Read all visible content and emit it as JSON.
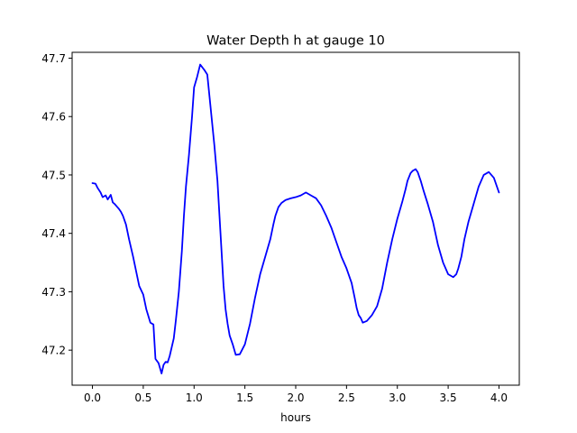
{
  "chart_data": {
    "type": "line",
    "title": "Water Depth h at gauge 10",
    "xlabel": "hours",
    "ylabel": "",
    "xlim": [
      -0.2,
      4.2
    ],
    "ylim": [
      47.14,
      47.71
    ],
    "xticks": [
      0.0,
      0.5,
      1.0,
      1.5,
      2.0,
      2.5,
      3.0,
      3.5,
      4.0
    ],
    "xtick_labels": [
      "0.0",
      "0.5",
      "1.0",
      "1.5",
      "2.0",
      "2.5",
      "3.0",
      "3.5",
      "4.0"
    ],
    "yticks": [
      47.2,
      47.3,
      47.4,
      47.5,
      47.6,
      47.7
    ],
    "ytick_labels": [
      "47.2",
      "47.3",
      "47.4",
      "47.5",
      "47.6",
      "47.7"
    ],
    "grid": false,
    "line_color": "#0000ff",
    "series": [
      {
        "x": [
          0.0,
          0.03,
          0.05,
          0.08,
          0.1,
          0.13,
          0.15,
          0.18,
          0.2,
          0.22,
          0.24,
          0.26,
          0.28,
          0.3,
          0.33,
          0.36,
          0.4,
          0.43,
          0.46,
          0.5,
          0.53,
          0.57,
          0.6,
          0.62,
          0.65,
          0.68,
          0.7,
          0.72,
          0.74,
          0.76,
          0.78,
          0.8,
          0.82,
          0.85,
          0.88,
          0.9,
          0.92,
          0.95,
          0.98,
          1.0,
          1.03,
          1.06,
          1.1,
          1.13,
          1.16,
          1.2,
          1.23,
          1.25,
          1.27,
          1.29,
          1.31,
          1.33,
          1.35,
          1.38,
          1.41,
          1.45,
          1.5,
          1.55,
          1.6,
          1.65,
          1.7,
          1.75,
          1.78,
          1.8,
          1.83,
          1.86,
          1.9,
          1.95,
          2.0,
          2.05,
          2.1,
          2.15,
          2.2,
          2.25,
          2.3,
          2.35,
          2.4,
          2.45,
          2.5,
          2.55,
          2.58,
          2.6,
          2.62,
          2.64,
          2.66,
          2.7,
          2.75,
          2.8,
          2.85,
          2.9,
          2.95,
          3.0,
          3.05,
          3.08,
          3.1,
          3.13,
          3.15,
          3.18,
          3.2,
          3.23,
          3.26,
          3.3,
          3.35,
          3.4,
          3.45,
          3.5,
          3.55,
          3.58,
          3.6,
          3.63,
          3.66,
          3.7,
          3.75,
          3.8,
          3.85,
          3.9,
          3.95,
          4.0
        ],
        "values": [
          47.486,
          47.485,
          47.478,
          47.47,
          47.462,
          47.465,
          47.458,
          47.466,
          47.453,
          47.45,
          47.446,
          47.442,
          47.437,
          47.43,
          47.415,
          47.39,
          47.36,
          47.335,
          47.31,
          47.295,
          47.27,
          47.247,
          47.244,
          47.185,
          47.178,
          47.16,
          47.175,
          47.18,
          47.179,
          47.19,
          47.205,
          47.22,
          47.25,
          47.3,
          47.37,
          47.43,
          47.48,
          47.535,
          47.6,
          47.65,
          47.668,
          47.689,
          47.68,
          47.672,
          47.62,
          47.55,
          47.49,
          47.43,
          47.37,
          47.31,
          47.27,
          47.245,
          47.225,
          47.21,
          47.192,
          47.193,
          47.21,
          47.245,
          47.29,
          47.33,
          47.36,
          47.39,
          47.415,
          47.43,
          47.445,
          47.452,
          47.457,
          47.46,
          47.462,
          47.465,
          47.47,
          47.465,
          47.46,
          47.448,
          47.43,
          47.41,
          47.385,
          47.36,
          47.34,
          47.315,
          47.29,
          47.272,
          47.26,
          47.255,
          47.247,
          47.25,
          47.26,
          47.275,
          47.305,
          47.35,
          47.39,
          47.425,
          47.455,
          47.475,
          47.49,
          47.503,
          47.507,
          47.51,
          47.505,
          47.49,
          47.472,
          47.45,
          47.42,
          47.38,
          47.35,
          47.33,
          47.325,
          47.33,
          47.34,
          47.36,
          47.39,
          47.42,
          47.45,
          47.48,
          47.5,
          47.505,
          47.495,
          47.47
        ]
      }
    ]
  }
}
